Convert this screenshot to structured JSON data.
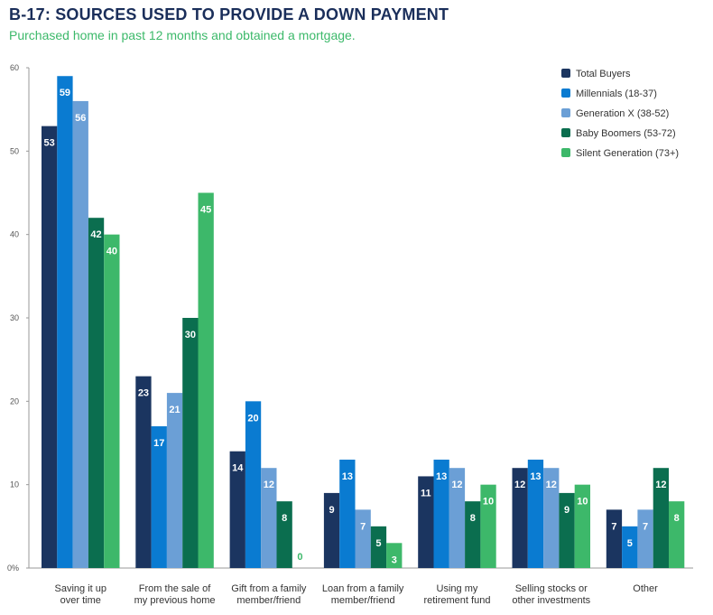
{
  "title": "B-17: SOURCES USED TO PROVIDE A DOWN PAYMENT",
  "subtitle": "Purchased home in past 12 months and obtained a mortgage.",
  "chart_data": {
    "type": "bar",
    "title": "B-17: SOURCES USED TO PROVIDE A DOWN PAYMENT",
    "subtitle": "Purchased home in past 12 months and obtained a mortgage.",
    "categories": [
      [
        "Saving it up",
        "over time"
      ],
      [
        "From the sale of",
        "my previous home"
      ],
      [
        "Gift from a family",
        "member/friend"
      ],
      [
        "Loan from a family",
        "member/friend"
      ],
      [
        "Using my",
        "retirement fund"
      ],
      [
        "Selling stocks or",
        "other investments"
      ],
      [
        "Other"
      ]
    ],
    "ylim": [
      0,
      60
    ],
    "yticks": [
      "0%",
      "10",
      "20",
      "30",
      "40",
      "50",
      "60"
    ],
    "grid": false,
    "legend_position": "top-right",
    "series": [
      {
        "name": "Total Buyers",
        "color": "#1b3560",
        "values": [
          53,
          23,
          14,
          9,
          11,
          12,
          7
        ]
      },
      {
        "name": "Millennials (18-37)",
        "color": "#0a7bd1",
        "values": [
          59,
          17,
          20,
          13,
          13,
          13,
          5
        ]
      },
      {
        "name": "Generation X (38-52)",
        "color": "#6b9fd6",
        "values": [
          56,
          21,
          12,
          7,
          12,
          12,
          7
        ]
      },
      {
        "name": "Baby Boomers (53-72)",
        "color": "#0b6e4f",
        "values": [
          42,
          30,
          8,
          5,
          8,
          9,
          12
        ]
      },
      {
        "name": "Silent Generation (73+)",
        "color": "#3db86a",
        "values": [
          40,
          45,
          0,
          3,
          10,
          10,
          8
        ]
      }
    ]
  }
}
